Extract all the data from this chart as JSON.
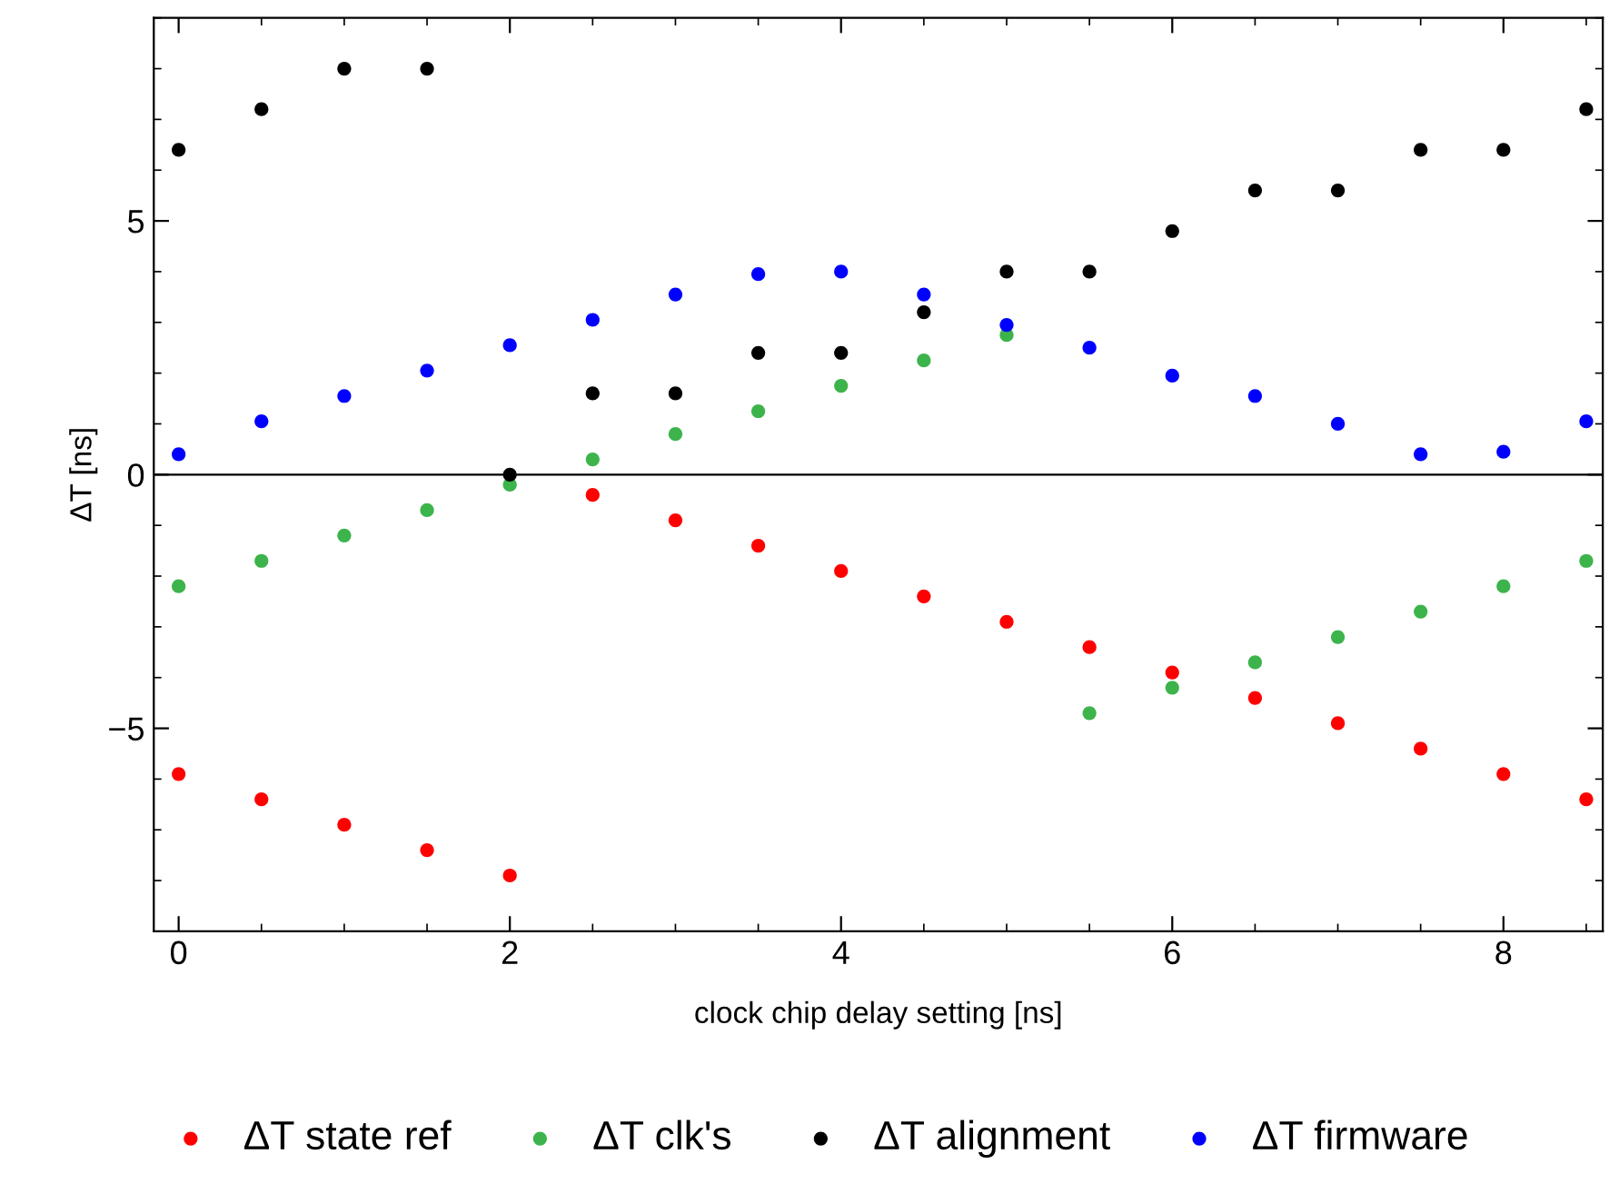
{
  "chart_data": {
    "type": "scatter",
    "xlabel": "clock chip delay setting [ns]",
    "ylabel": "ΔT [ns]",
    "x": [
      0,
      0.5,
      1,
      1.5,
      2,
      2.5,
      3,
      3.5,
      4,
      4.5,
      5,
      5.5,
      6,
      6.5,
      7,
      7.5,
      8,
      8.5
    ],
    "series": [
      {
        "name": "ΔT state ref",
        "color": "#ff0000",
        "values": [
          -5.9,
          -6.4,
          -6.9,
          -7.4,
          -7.9,
          -0.4,
          -0.9,
          -1.4,
          -1.9,
          -2.4,
          -2.9,
          -3.4,
          -3.9,
          -4.4,
          -4.9,
          -5.4,
          -5.9,
          -6.4
        ]
      },
      {
        "name": "ΔT clk's",
        "color": "#3cb44b",
        "values": [
          -2.2,
          -1.7,
          -1.2,
          -0.7,
          -0.2,
          0.3,
          0.8,
          1.25,
          1.75,
          2.25,
          2.75,
          -4.7,
          -4.2,
          -3.7,
          -3.2,
          -2.7,
          -2.2,
          -1.7
        ]
      },
      {
        "name": "ΔT alignment",
        "color": "#000000",
        "values": [
          6.4,
          7.2,
          8,
          8,
          0,
          1.6,
          1.6,
          2.4,
          2.4,
          3.2,
          4,
          4,
          4.8,
          5.6,
          5.6,
          6.4,
          6.4,
          7.2
        ]
      },
      {
        "name": "ΔT firmware",
        "color": "#0000ff",
        "values": [
          0.4,
          1.05,
          1.55,
          2.05,
          2.55,
          3.05,
          3.55,
          3.95,
          4,
          3.55,
          2.95,
          2.5,
          1.95,
          1.55,
          1,
          0.4,
          0.45,
          1.05
        ]
      }
    ],
    "xlim": [
      -0.15,
      8.6
    ],
    "ylim": [
      -9,
      9
    ],
    "xticks": [
      0,
      2,
      4,
      6,
      8
    ],
    "yticks": [
      {
        "value": -5,
        "label": "−5"
      },
      0,
      5
    ],
    "ref_lines": [
      {
        "axis": "y",
        "value": 0,
        "color": "#000000"
      }
    ],
    "marker": "circle",
    "grid": false,
    "legend": "bottom"
  }
}
